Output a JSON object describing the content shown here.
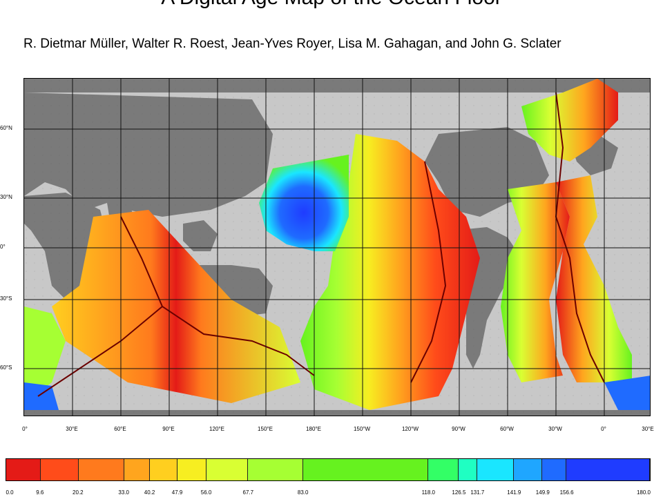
{
  "title": "A Digital Age Map of the Ocean Floor",
  "authors": "R. Dietmar Müller, Walter R. Roest, Jean-Yves Royer, Lisa M. Gahagan, and John G. Sclater",
  "map": {
    "lat_labels": [
      {
        "id": "60n",
        "text": "60°N"
      },
      {
        "id": "30n",
        "text": "30°N"
      },
      {
        "id": "0",
        "text": "0°"
      },
      {
        "id": "30s",
        "text": "30°S"
      },
      {
        "id": "60s",
        "text": "60°S"
      }
    ],
    "lon_labels": [
      "0°",
      "30°E",
      "60°E",
      "90°E",
      "120°E",
      "150°E",
      "180°E",
      "150°W",
      "120°W",
      "90°W",
      "60°W",
      "30°W",
      "0°",
      "30°E"
    ],
    "colors": {
      "land": "#7a7a7a",
      "shelf": "#c8c8c8",
      "grid": "#111111",
      "ridge": "#6b0000"
    }
  },
  "colorbar": {
    "ticks": [
      "0.0",
      "9.6",
      "20.2",
      "33.0",
      "40.2",
      "47.9",
      "56.0",
      "67.7",
      "83.0",
      "118.0",
      "126.5",
      "131.7",
      "141.9",
      "149.9",
      "156.6",
      "180.0"
    ],
    "colors": [
      "#e41b17",
      "#ff4c1a",
      "#ff7a1d",
      "#ffa51e",
      "#ffcf1f",
      "#f7ee21",
      "#d9ff33",
      "#a6ff33",
      "#66f21f",
      "#33ff66",
      "#1fffc2",
      "#1ae6ff",
      "#1fa6ff",
      "#1f6bff",
      "#1f3cff"
    ]
  }
}
